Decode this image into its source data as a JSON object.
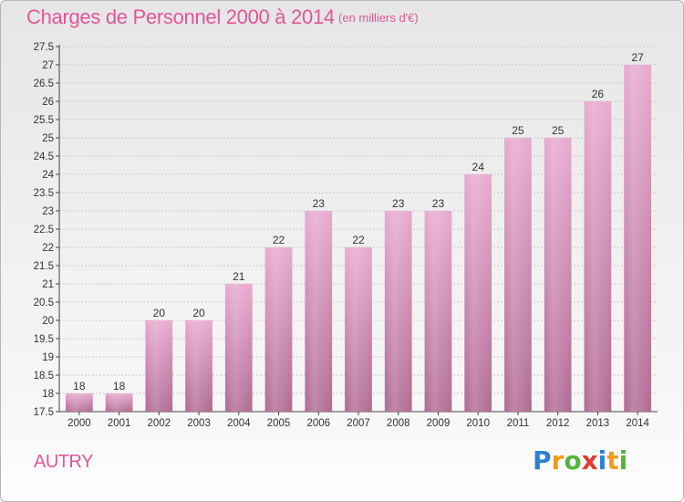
{
  "header": {
    "title": "Charges de Personnel 2000 à 2014",
    "subtitle": "(en milliers d'€)"
  },
  "footer": {
    "town": "AUTRY",
    "logo_letters": [
      {
        "char": "P",
        "color": "#2f7fd6"
      },
      {
        "char": "r",
        "color": "#f29b1b"
      },
      {
        "char": "o",
        "color": "#56b43b"
      },
      {
        "char": "x",
        "color": "#e23b2f"
      },
      {
        "char": "i",
        "color": "#2f7fd6"
      },
      {
        "char": "t",
        "color": "#f29b1b"
      },
      {
        "char": "i",
        "color": "#56b43b"
      }
    ]
  },
  "chart_data": {
    "type": "bar",
    "title": "Charges de Personnel 2000 à 2014",
    "subtitle": "(en milliers d'€)",
    "categories": [
      "2000",
      "2001",
      "2002",
      "2003",
      "2004",
      "2005",
      "2006",
      "2007",
      "2008",
      "2009",
      "2010",
      "2011",
      "2012",
      "2013",
      "2014"
    ],
    "values": [
      18,
      18,
      20,
      20,
      21,
      22,
      23,
      22,
      23,
      23,
      24,
      25,
      25,
      26,
      27
    ],
    "ylim": [
      17.5,
      27.5
    ],
    "yticks": [
      "17.5",
      "18",
      "18.5",
      "19",
      "19.5",
      "20",
      "20.5",
      "21",
      "21.5",
      "22",
      "22.5",
      "23",
      "23.5",
      "24",
      "24.5",
      "25",
      "25.5",
      "26",
      "26.5",
      "27",
      "27.5"
    ],
    "grid": true,
    "bar_color_top": "#e9a9d0",
    "bar_color_bottom": "#b06a93"
  }
}
